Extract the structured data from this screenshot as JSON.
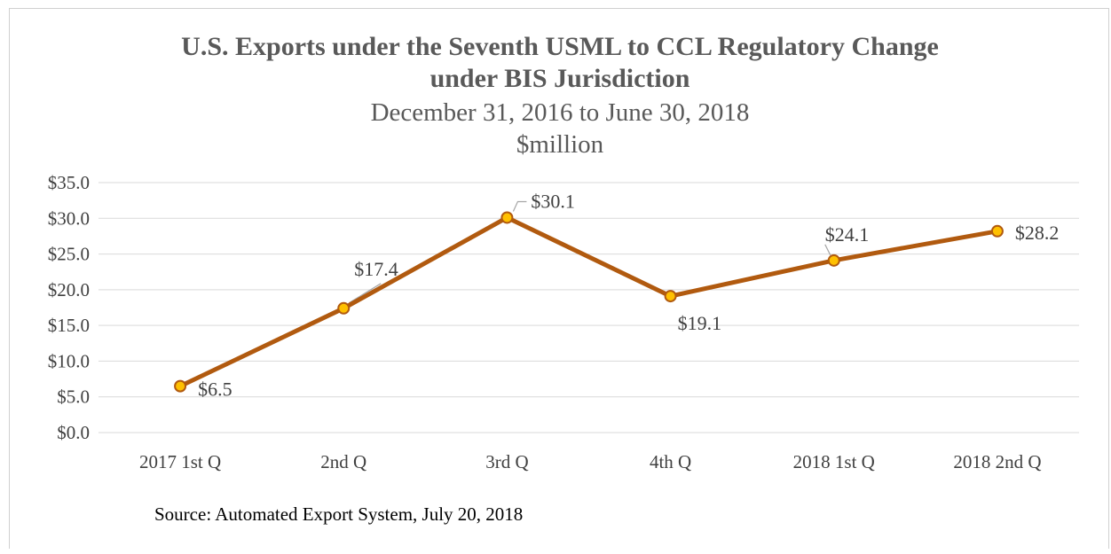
{
  "chart_data": {
    "type": "line",
    "title_lines": [
      "U.S. Exports under the Seventh USML to CCL Regulatory Change",
      "under BIS Jurisdiction"
    ],
    "subtitle_lines": [
      "December 31, 2016  to June 30, 2018",
      "$million"
    ],
    "categories": [
      "2017 1st Q",
      "2nd Q",
      "3rd Q",
      "4th Q",
      "2018 1st Q",
      "2018 2nd Q"
    ],
    "series": [
      {
        "values": [
          6.5,
          17.4,
          30.1,
          19.1,
          24.1,
          28.2
        ],
        "data_labels": [
          "$6.5",
          "$17.4",
          "$30.1",
          "$19.1",
          "$24.1",
          "$28.2"
        ],
        "line_color": "#B15A0F",
        "marker_fill": "#FFC000",
        "marker_stroke": "#B15A0F"
      }
    ],
    "y_ticks": [
      0,
      5,
      10,
      15,
      20,
      25,
      30,
      35
    ],
    "y_tick_labels": [
      "$0.0",
      "$5.0",
      "$10.0",
      "$15.0",
      "$20.0",
      "$25.0",
      "$30.0",
      "$35.0"
    ],
    "ylim": [
      0,
      35
    ],
    "grid": true,
    "legend": "none",
    "xlabel": "",
    "ylabel": ""
  },
  "source_note": "Source: Automated Export System, July 20, 2018",
  "colors": {
    "title": "#595959",
    "gridline": "#D9D9D9",
    "axis_text": "#404040"
  }
}
